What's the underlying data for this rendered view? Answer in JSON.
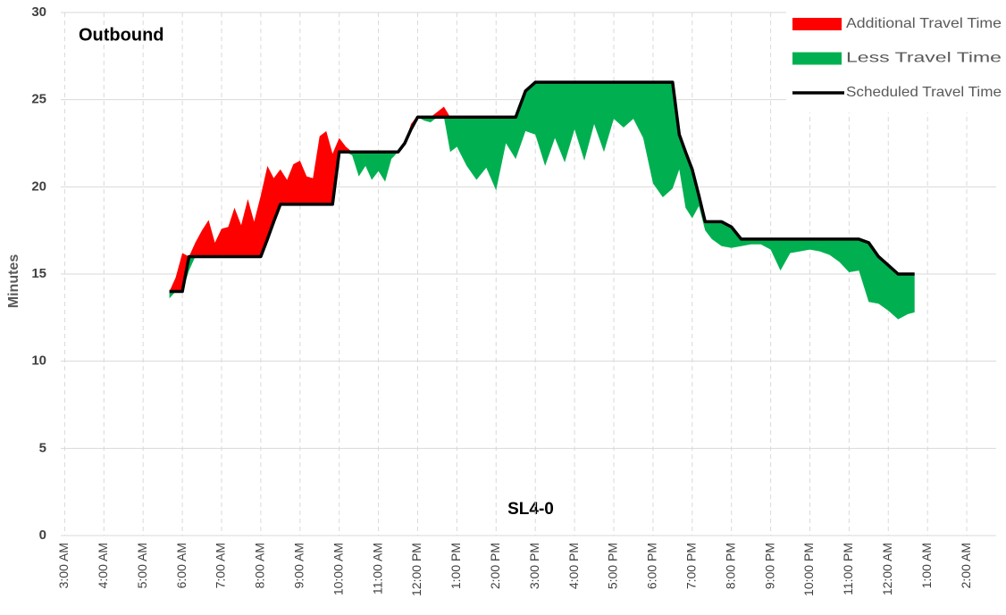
{
  "chart_data": {
    "type": "area",
    "title": "Outbound",
    "subtitle": "SL4-0",
    "y_label": "Minutes",
    "x": [
      5.67,
      5.83,
      6.0,
      6.17,
      6.33,
      6.5,
      6.67,
      6.83,
      7.0,
      7.17,
      7.33,
      7.5,
      7.67,
      7.83,
      8.0,
      8.17,
      8.33,
      8.5,
      8.67,
      8.83,
      9.0,
      9.17,
      9.33,
      9.5,
      9.67,
      9.83,
      10.0,
      10.17,
      10.33,
      10.5,
      10.67,
      10.83,
      11.0,
      11.17,
      11.33,
      11.5,
      11.67,
      11.83,
      12.0,
      12.17,
      12.33,
      12.5,
      12.67,
      12.83,
      13.0,
      13.25,
      13.5,
      13.75,
      14.0,
      14.25,
      14.5,
      14.75,
      15.0,
      15.25,
      15.5,
      15.75,
      16.0,
      16.25,
      16.5,
      16.75,
      17.0,
      17.25,
      17.5,
      17.75,
      18.0,
      18.25,
      18.5,
      18.67,
      18.83,
      19.0,
      19.17,
      19.33,
      19.5,
      19.75,
      20.0,
      20.25,
      20.5,
      20.75,
      21.0,
      21.25,
      21.5,
      21.75,
      22.0,
      22.25,
      22.5,
      22.75,
      23.0,
      23.25,
      23.5,
      23.75,
      24.0,
      24.25,
      24.5,
      24.67
    ],
    "series": [
      {
        "name": "Additional Travel Time",
        "color": "#ff0000",
        "stack": "above",
        "values": [
          0,
          0.8,
          2.2,
          0,
          0.8,
          1.5,
          2.1,
          0.8,
          1.6,
          1.7,
          2.8,
          1.8,
          3.3,
          2.0,
          3.5,
          4.2,
          2.5,
          2.0,
          1.4,
          2.3,
          2.5,
          1.6,
          1.5,
          3.9,
          4.2,
          2.9,
          0.8,
          0.3,
          0,
          0,
          0,
          0,
          0,
          0,
          0,
          0,
          0,
          0.3,
          0.1,
          0,
          0,
          0.3,
          0.6,
          0,
          0,
          0,
          0,
          0,
          0,
          0,
          0,
          0,
          0,
          0,
          0,
          0,
          0,
          0,
          0,
          0,
          0,
          0,
          0,
          0,
          0,
          0,
          0,
          0,
          0,
          0,
          0,
          0,
          0,
          0,
          0,
          0,
          0,
          0,
          0,
          0,
          0,
          0,
          0,
          0,
          0,
          0,
          0,
          0,
          0,
          0,
          0,
          0,
          0,
          0
        ]
      },
      {
        "name": "Less Travel Time",
        "color": "#00b050",
        "stack": "below",
        "values": [
          0.4,
          0,
          0,
          0.8,
          0,
          0,
          0,
          0,
          0,
          0,
          0,
          0,
          0,
          0,
          0,
          0,
          0,
          0,
          0,
          0,
          0,
          0,
          0,
          0,
          0,
          0,
          0,
          0,
          0.2,
          1.4,
          0.8,
          1.6,
          1.1,
          1.7,
          0.4,
          0,
          0,
          0,
          0,
          0.2,
          0.3,
          0,
          0,
          2.0,
          1.7,
          2.8,
          3.6,
          2.9,
          4.2,
          1.5,
          2.4,
          2.3,
          3.0,
          4.8,
          3.2,
          4.6,
          2.7,
          4.5,
          2.4,
          4.0,
          2.1,
          2.6,
          2.1,
          3.2,
          5.8,
          6.6,
          6.1,
          2.0,
          3.2,
          2.8,
          0.6,
          0.5,
          1.0,
          1.4,
          1.2,
          0.4,
          0.3,
          0.3,
          0.6,
          1.8,
          0.8,
          0.7,
          0.6,
          0.7,
          0.9,
          1.3,
          1.9,
          1.8,
          3.4,
          2.7,
          2.6,
          2.6,
          2.3,
          2.2
        ]
      },
      {
        "name": "Scheduled Travel Time",
        "color": "#000000",
        "stack": "base",
        "values": [
          14,
          14,
          14,
          16,
          16,
          16,
          16,
          16,
          16,
          16,
          16,
          16,
          16,
          16,
          16,
          17,
          18,
          19,
          19,
          19,
          19,
          19,
          19,
          19,
          19,
          19,
          22,
          22,
          22,
          22,
          22,
          22,
          22,
          22,
          22,
          22,
          22.5,
          23.3,
          24,
          24,
          24,
          24,
          24,
          24,
          24,
          24,
          24,
          24,
          24,
          24,
          24,
          25.5,
          26,
          26,
          26,
          26,
          26,
          26,
          26,
          26,
          26,
          26,
          26,
          26,
          26,
          26,
          26,
          23,
          22,
          21,
          19.5,
          18,
          18,
          18,
          17.7,
          17,
          17,
          17,
          17,
          17,
          17,
          17,
          17,
          17,
          17,
          17,
          17,
          17,
          16.8,
          16,
          15.5,
          15,
          15,
          15
        ]
      }
    ],
    "xlim": [
      2.9,
      26.75
    ],
    "xticks": [
      {
        "value": 3,
        "label": "3:00 AM"
      },
      {
        "value": 4,
        "label": "4:00 AM"
      },
      {
        "value": 5,
        "label": "5:00 AM"
      },
      {
        "value": 6,
        "label": "6:00 AM"
      },
      {
        "value": 7,
        "label": "7:00 AM"
      },
      {
        "value": 8,
        "label": "8:00 AM"
      },
      {
        "value": 9,
        "label": "9:00 AM"
      },
      {
        "value": 10,
        "label": "10:00 AM"
      },
      {
        "value": 11,
        "label": "11:00 AM"
      },
      {
        "value": 12,
        "label": "12:00 PM"
      },
      {
        "value": 13,
        "label": "1:00 PM"
      },
      {
        "value": 14,
        "label": "2:00 PM"
      },
      {
        "value": 15,
        "label": "3:00 PM"
      },
      {
        "value": 16,
        "label": "4:00 PM"
      },
      {
        "value": 17,
        "label": "5:00 PM"
      },
      {
        "value": 18,
        "label": "6:00 PM"
      },
      {
        "value": 19,
        "label": "7:00 PM"
      },
      {
        "value": 20,
        "label": "8:00 PM"
      },
      {
        "value": 21,
        "label": "9:00 PM"
      },
      {
        "value": 22,
        "label": "10:00 PM"
      },
      {
        "value": 23,
        "label": "11:00 PM"
      },
      {
        "value": 24,
        "label": "12:00 AM"
      },
      {
        "value": 25,
        "label": "1:00 AM"
      },
      {
        "value": 26,
        "label": "2:00 AM"
      }
    ],
    "ylim": [
      0,
      30
    ],
    "yticks": [
      0,
      5,
      10,
      15,
      20,
      25,
      30
    ],
    "grid": true,
    "legend": "upper right"
  }
}
